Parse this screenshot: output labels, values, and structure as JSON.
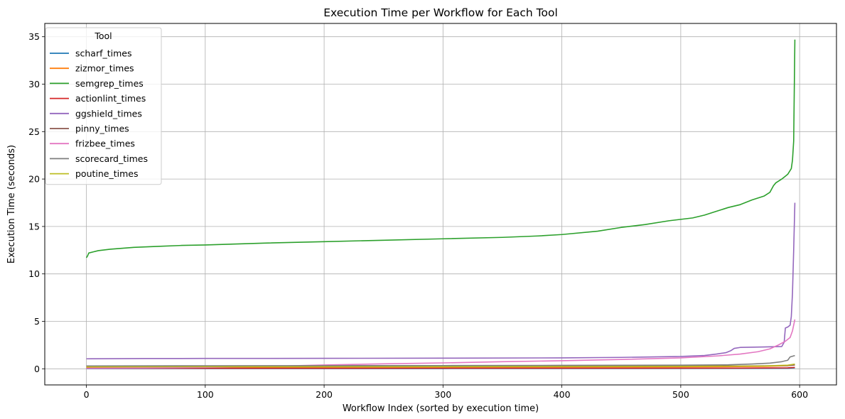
{
  "chart_data": {
    "type": "line",
    "title": "Execution Time per Workflow for Each Tool",
    "xlabel": "Workflow Index (sorted by execution time)",
    "ylabel": "Execution Time (seconds)",
    "xlim": [
      -35,
      631
    ],
    "ylim": [
      -1.7,
      36.4
    ],
    "xticks": [
      0,
      100,
      200,
      300,
      400,
      500,
      600
    ],
    "yticks": [
      0,
      5,
      10,
      15,
      20,
      25,
      30,
      35
    ],
    "grid": true,
    "legend": {
      "title": "Tool",
      "placement": "top-left"
    },
    "series": [
      {
        "name": "scharf_times",
        "color": "#1f77b4",
        "points": [
          [
            0,
            0.02
          ],
          [
            300,
            0.03
          ],
          [
            550,
            0.04
          ],
          [
            590,
            0.06
          ],
          [
            596,
            0.1
          ]
        ]
      },
      {
        "name": "zizmor_times",
        "color": "#ff7f0e",
        "points": [
          [
            0,
            0.15
          ],
          [
            300,
            0.17
          ],
          [
            500,
            0.2
          ],
          [
            570,
            0.25
          ],
          [
            590,
            0.32
          ],
          [
            596,
            0.45
          ]
        ]
      },
      {
        "name": "semgrep_times",
        "color": "#2ca02c",
        "points": [
          [
            0,
            11.7
          ],
          [
            1,
            11.9
          ],
          [
            2,
            12.2
          ],
          [
            5,
            12.3
          ],
          [
            10,
            12.45
          ],
          [
            20,
            12.6
          ],
          [
            40,
            12.8
          ],
          [
            60,
            12.9
          ],
          [
            80,
            13.0
          ],
          [
            100,
            13.05
          ],
          [
            150,
            13.25
          ],
          [
            200,
            13.4
          ],
          [
            250,
            13.55
          ],
          [
            300,
            13.7
          ],
          [
            350,
            13.85
          ],
          [
            380,
            14.0
          ],
          [
            400,
            14.15
          ],
          [
            430,
            14.5
          ],
          [
            450,
            14.9
          ],
          [
            470,
            15.2
          ],
          [
            490,
            15.6
          ],
          [
            510,
            15.9
          ],
          [
            520,
            16.2
          ],
          [
            530,
            16.6
          ],
          [
            540,
            17.0
          ],
          [
            550,
            17.3
          ],
          [
            560,
            17.8
          ],
          [
            570,
            18.2
          ],
          [
            575,
            18.6
          ],
          [
            578,
            19.3
          ],
          [
            580,
            19.6
          ],
          [
            585,
            20.0
          ],
          [
            588,
            20.3
          ],
          [
            590,
            20.5
          ],
          [
            592,
            20.9
          ],
          [
            593,
            21.1
          ],
          [
            594,
            22.0
          ],
          [
            595,
            24.0
          ],
          [
            596,
            34.7
          ]
        ]
      },
      {
        "name": "actionlint_times",
        "color": "#d62728",
        "points": [
          [
            0,
            0.05
          ],
          [
            300,
            0.06
          ],
          [
            550,
            0.07
          ],
          [
            590,
            0.1
          ],
          [
            596,
            0.15
          ]
        ]
      },
      {
        "name": "ggshield_times",
        "color": "#9467bd",
        "points": [
          [
            0,
            1.05
          ],
          [
            50,
            1.08
          ],
          [
            100,
            1.09
          ],
          [
            200,
            1.1
          ],
          [
            300,
            1.12
          ],
          [
            400,
            1.15
          ],
          [
            450,
            1.2
          ],
          [
            500,
            1.3
          ],
          [
            520,
            1.4
          ],
          [
            530,
            1.55
          ],
          [
            538,
            1.7
          ],
          [
            542,
            1.9
          ],
          [
            545,
            2.15
          ],
          [
            550,
            2.25
          ],
          [
            570,
            2.3
          ],
          [
            585,
            2.35
          ],
          [
            587,
            2.8
          ],
          [
            588,
            4.3
          ],
          [
            590,
            4.4
          ],
          [
            592,
            4.6
          ],
          [
            593,
            5.5
          ],
          [
            594,
            8.0
          ],
          [
            595,
            12.5
          ],
          [
            596,
            17.5
          ]
        ]
      },
      {
        "name": "pinny_times",
        "color": "#8c564b",
        "points": [
          [
            0,
            0.25
          ],
          [
            300,
            0.27
          ],
          [
            550,
            0.3
          ],
          [
            590,
            0.33
          ],
          [
            596,
            0.4
          ]
        ]
      },
      {
        "name": "frizbee_times",
        "color": "#e377c2",
        "points": [
          [
            0,
            0.05
          ],
          [
            50,
            0.08
          ],
          [
            100,
            0.15
          ],
          [
            150,
            0.25
          ],
          [
            200,
            0.4
          ],
          [
            250,
            0.52
          ],
          [
            300,
            0.62
          ],
          [
            350,
            0.75
          ],
          [
            400,
            0.85
          ],
          [
            450,
            0.98
          ],
          [
            500,
            1.15
          ],
          [
            530,
            1.35
          ],
          [
            550,
            1.55
          ],
          [
            565,
            1.8
          ],
          [
            575,
            2.1
          ],
          [
            582,
            2.5
          ],
          [
            588,
            2.9
          ],
          [
            592,
            3.3
          ],
          [
            594,
            4.0
          ],
          [
            595,
            4.6
          ],
          [
            596,
            5.2
          ]
        ]
      },
      {
        "name": "scorecard_times",
        "color": "#7f7f7f",
        "points": [
          [
            0,
            0.3
          ],
          [
            100,
            0.32
          ],
          [
            200,
            0.33
          ],
          [
            300,
            0.34
          ],
          [
            400,
            0.36
          ],
          [
            500,
            0.38
          ],
          [
            540,
            0.42
          ],
          [
            560,
            0.5
          ],
          [
            575,
            0.6
          ],
          [
            585,
            0.75
          ],
          [
            590,
            0.9
          ],
          [
            592,
            1.25
          ],
          [
            596,
            1.4
          ]
        ]
      },
      {
        "name": "poutine_times",
        "color": "#bcbd22",
        "points": [
          [
            0,
            0.2
          ],
          [
            100,
            0.21
          ],
          [
            300,
            0.22
          ],
          [
            500,
            0.25
          ],
          [
            570,
            0.3
          ],
          [
            590,
            0.38
          ],
          [
            596,
            0.5
          ]
        ]
      }
    ]
  }
}
